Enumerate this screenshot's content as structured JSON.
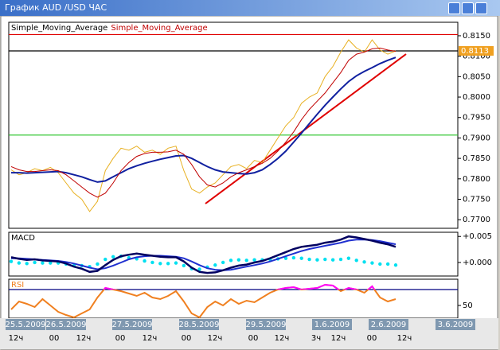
{
  "window": {
    "title": "График AUD /USD  ЧАС"
  },
  "chart_data": [
    {
      "type": "line",
      "ylim": [
        0.7679,
        0.8183
      ],
      "yticks": [
        {
          "value": 0.815,
          "label": "0.8150"
        },
        {
          "value": 0.81,
          "label": "0.8100"
        },
        {
          "value": 0.805,
          "label": "0.8050"
        },
        {
          "value": 0.8,
          "label": "0.8000"
        },
        {
          "value": 0.795,
          "label": "0.7950"
        },
        {
          "value": 0.79,
          "label": "0.7900"
        },
        {
          "value": 0.785,
          "label": "0.7850"
        },
        {
          "value": 0.78,
          "label": "0.7800"
        },
        {
          "value": 0.775,
          "label": "0.7750"
        },
        {
          "value": 0.77,
          "label": "0.7700"
        }
      ],
      "hlines": [
        {
          "value": 0.8153,
          "color": "#e00000"
        },
        {
          "value": 0.8113,
          "color": "#000000",
          "label": "0.8113",
          "label_color": "#f0a020"
        },
        {
          "value": 0.7907,
          "color": "#20c020"
        }
      ],
      "series": [
        {
          "color": "#e8b020",
          "width": 1,
          "values": [
            0.7822,
            0.781,
            0.7815,
            0.7825,
            0.782,
            0.7828,
            0.7815,
            0.779,
            0.7765,
            0.775,
            0.772,
            0.7745,
            0.782,
            0.785,
            0.7875,
            0.787,
            0.788,
            0.7865,
            0.787,
            0.786,
            0.7875,
            0.788,
            0.782,
            0.7775,
            0.7765,
            0.778,
            0.779,
            0.781,
            0.783,
            0.7835,
            0.7825,
            0.7845,
            0.784,
            0.787,
            0.79,
            0.793,
            0.795,
            0.7985,
            0.8,
            0.801,
            0.805,
            0.8075,
            0.811,
            0.814,
            0.812,
            0.811,
            0.814,
            0.8115,
            0.8105,
            0.8113
          ]
        },
        {
          "name": "Simple_Moving_Average",
          "color": "#1020a0",
          "legend_color": "#000000",
          "width": 2,
          "values": [
            0.7815,
            0.7815,
            0.7814,
            0.7815,
            0.7816,
            0.7817,
            0.7818,
            0.7815,
            0.781,
            0.7805,
            0.7798,
            0.7792,
            0.7795,
            0.7805,
            0.7815,
            0.7825,
            0.7832,
            0.7838,
            0.7843,
            0.7848,
            0.7852,
            0.7856,
            0.7857,
            0.785,
            0.784,
            0.783,
            0.7822,
            0.7817,
            0.7815,
            0.7813,
            0.7812,
            0.7815,
            0.7822,
            0.7835,
            0.785,
            0.7868,
            0.789,
            0.7912,
            0.7935,
            0.7958,
            0.798,
            0.8,
            0.802,
            0.8038,
            0.8052,
            0.8063,
            0.8072,
            0.8082,
            0.809,
            0.8097
          ]
        },
        {
          "name": "Simple_Moving_Average",
          "color": "#c00000",
          "legend_color": "#c00000",
          "width": 1,
          "values": [
            0.783,
            0.7822,
            0.7818,
            0.7818,
            0.782,
            0.7822,
            0.782,
            0.781,
            0.7795,
            0.778,
            0.7765,
            0.7755,
            0.7765,
            0.779,
            0.782,
            0.784,
            0.7855,
            0.7862,
            0.7865,
            0.7865,
            0.7866,
            0.787,
            0.786,
            0.7835,
            0.7805,
            0.7785,
            0.778,
            0.779,
            0.7805,
            0.7815,
            0.7822,
            0.783,
            0.7838,
            0.785,
            0.7868,
            0.789,
            0.7915,
            0.7945,
            0.797,
            0.799,
            0.801,
            0.8035,
            0.806,
            0.809,
            0.8105,
            0.811,
            0.8118,
            0.812,
            0.8115,
            0.8112
          ]
        }
      ]
    },
    {
      "type": "line",
      "title": "MACD",
      "ylim": [
        -0.0026,
        0.0058
      ],
      "yticks": [
        {
          "value": 0.005,
          "label": "+0.005"
        },
        {
          "value": 0,
          "label": "+0.000"
        }
      ],
      "series": [
        {
          "color": "#00e0f0",
          "kind": "dots",
          "values": [
            0.0002,
            -0.0001,
            -0.0002,
            0,
            -0.0001,
            -0.0001,
            -0.0001,
            -0.0003,
            -0.0006,
            -0.0006,
            -0.0008,
            -0.0003,
            0.0006,
            0.0011,
            0.0012,
            0.0009,
            0.0007,
            0.0003,
            0,
            -0.0002,
            -0.0002,
            -0.0001,
            -0.0006,
            -0.0012,
            -0.0013,
            -0.0009,
            -0.0005,
            0,
            0.0004,
            0.0005,
            0.0004,
            0.0005,
            0.0005,
            0.0006,
            0.0007,
            0.0008,
            0.0009,
            0.0008,
            0.0006,
            0.0005,
            0.0006,
            0.0005,
            0.0006,
            0.0008,
            0.0004,
            0.0001,
            -0.0001,
            -0.0003,
            -0.0003,
            -0.0005
          ]
        },
        {
          "color": "#2030d0",
          "width": 2,
          "values": [
            0.0008,
            0.0008,
            0.0007,
            0.0006,
            0.0005,
            0.0004,
            0.0003,
            0.0001,
            -0.0002,
            -0.0006,
            -0.001,
            -0.0013,
            -0.0011,
            -0.0006,
            0.0,
            0.0006,
            0.001,
            0.0012,
            0.0013,
            0.0013,
            0.0012,
            0.0011,
            0.0008,
            0.0002,
            -0.0005,
            -0.0011,
            -0.0014,
            -0.0015,
            -0.0014,
            -0.0011,
            -0.0008,
            -0.0005,
            -0.0002,
            0.0002,
            0.0007,
            0.0012,
            0.0017,
            0.0022,
            0.0026,
            0.0029,
            0.0032,
            0.0035,
            0.0038,
            0.0042,
            0.0044,
            0.0044,
            0.0043,
            0.0041,
            0.0038,
            0.0035
          ]
        },
        {
          "color": "#000060",
          "width": 2.5,
          "values": [
            0.001,
            0.0007,
            0.0005,
            0.0006,
            0.0004,
            0.0003,
            0.0002,
            -0.0002,
            -0.0008,
            -0.0012,
            -0.0018,
            -0.0016,
            -0.0005,
            0.0005,
            0.0012,
            0.0015,
            0.0017,
            0.0015,
            0.0013,
            0.0011,
            0.001,
            0.001,
            0.0002,
            -0.001,
            -0.0018,
            -0.002,
            -0.0019,
            -0.0015,
            -0.001,
            -0.0006,
            -0.0004,
            0.0,
            0.0003,
            0.0008,
            0.0014,
            0.002,
            0.0026,
            0.003,
            0.0032,
            0.0034,
            0.0038,
            0.004,
            0.0044,
            0.005,
            0.0048,
            0.0045,
            0.0042,
            0.0038,
            0.0035,
            0.003
          ]
        }
      ]
    },
    {
      "type": "line",
      "title": "RSI",
      "title_color": "#f08020",
      "ylim": [
        34,
        83
      ],
      "yticks": [
        50
      ],
      "hlines": [
        {
          "value": 70,
          "color": "#000080"
        }
      ],
      "series": [
        {
          "color": "#f08020",
          "overbought_color": "#ff00ff",
          "width": 2,
          "values": [
            45,
            55,
            52,
            48,
            58,
            50,
            42,
            38,
            35,
            40,
            45,
            60,
            72,
            70,
            68,
            65,
            62,
            66,
            60,
            58,
            62,
            68,
            55,
            40,
            35,
            48,
            55,
            50,
            58,
            52,
            56,
            54,
            60,
            66,
            70,
            72,
            73,
            70,
            71,
            72,
            76,
            75,
            68,
            72,
            70,
            66,
            74,
            60,
            55,
            58
          ]
        }
      ]
    }
  ],
  "time_axis": {
    "dates": [
      "25.5.2009",
      "26.5.2009",
      "27.5.2009",
      "28.5.2009",
      "29.5.2009",
      "1.6.2009",
      "2.6.2009",
      "3.6.2009"
    ],
    "hours": [
      "12ч",
      "00",
      "12ч",
      "00",
      "12ч",
      "00",
      "12ч",
      "00",
      "12ч",
      "3ч",
      "12ч",
      "00",
      "12ч"
    ]
  }
}
